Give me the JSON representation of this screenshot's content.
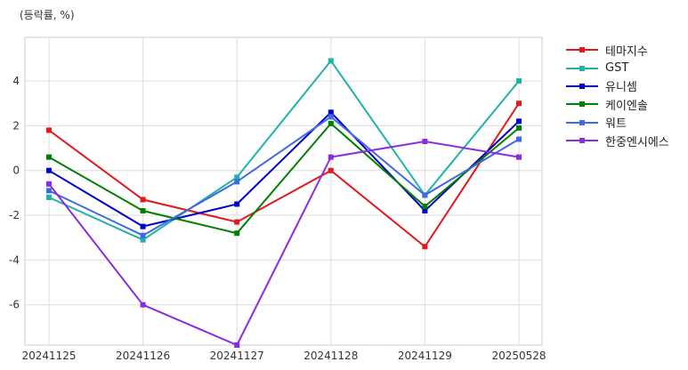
{
  "chart_data": {
    "type": "line",
    "unit_label": "(등락률, %)",
    "categories": [
      "20241125",
      "20241126",
      "20241127",
      "20241128",
      "20241129",
      "20250528"
    ],
    "ylim": [
      -7.8,
      5.95
    ],
    "yticks": [
      -6,
      -4,
      -2,
      0,
      2,
      4
    ],
    "grid": true,
    "legend_position": "right",
    "series": [
      {
        "name": "테마지수",
        "color": "#e31a1c",
        "values": [
          1.8,
          -1.3,
          -2.3,
          0.0,
          -3.4,
          3.0
        ]
      },
      {
        "name": "GST",
        "color": "#20b2aa",
        "values": [
          -1.2,
          -3.1,
          -0.3,
          4.9,
          -1.1,
          4.0
        ]
      },
      {
        "name": "유니셈",
        "color": "#0000cd",
        "values": [
          0.0,
          -2.5,
          -1.5,
          2.6,
          -1.8,
          2.2
        ]
      },
      {
        "name": "케이엔솔",
        "color": "#008000",
        "values": [
          0.6,
          -1.8,
          -2.8,
          2.1,
          -1.6,
          1.9
        ]
      },
      {
        "name": "워트",
        "color": "#4169e1",
        "values": [
          -0.9,
          -2.9,
          -0.5,
          2.4,
          -1.1,
          1.4
        ]
      },
      {
        "name": "한중엔시에스",
        "color": "#8a2be2",
        "values": [
          -0.6,
          -6.0,
          -7.8,
          0.6,
          1.3,
          0.6
        ]
      }
    ]
  }
}
